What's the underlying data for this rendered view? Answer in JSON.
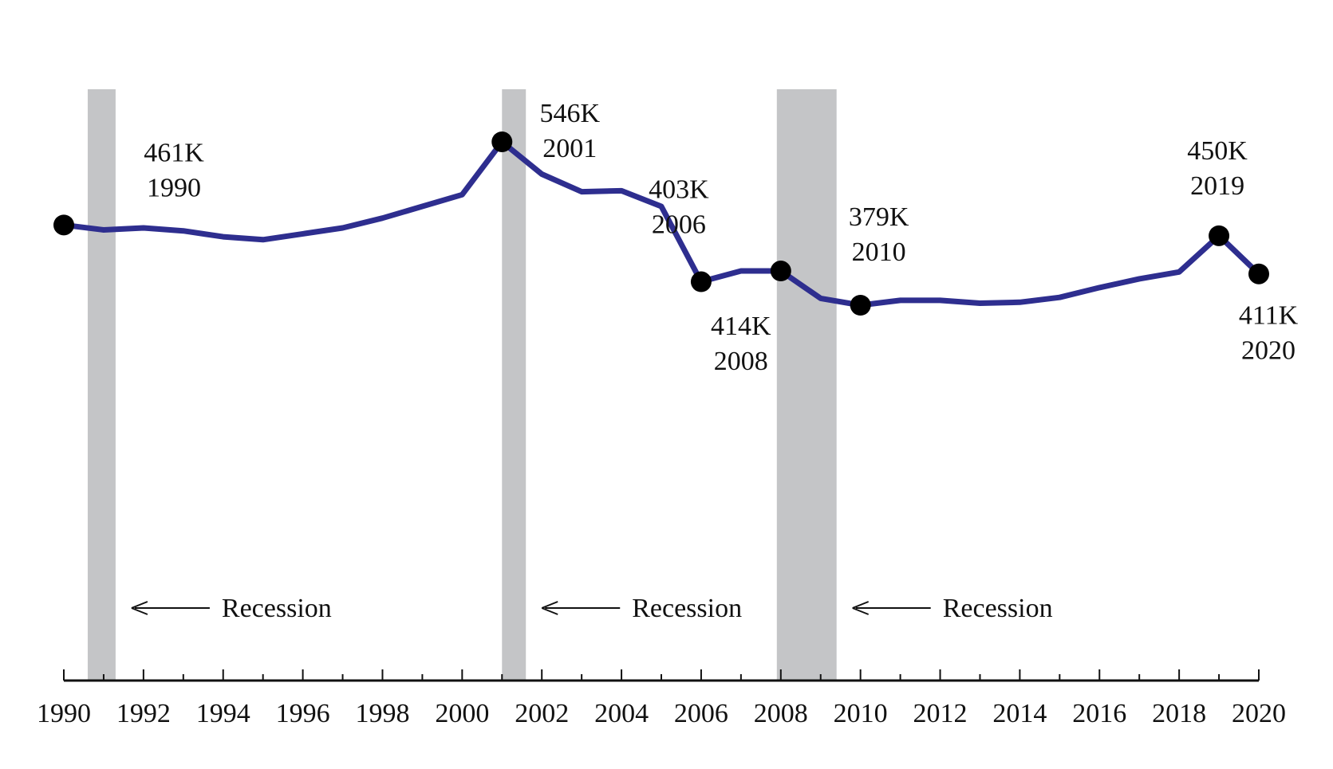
{
  "chart_data": {
    "type": "line",
    "title": "",
    "xlabel": "",
    "ylabel": "",
    "x_range": [
      1990,
      2020
    ],
    "grid": false,
    "legend": "none",
    "series": [
      {
        "color": "#2e2e8f",
        "x": [
          1990,
          1991,
          1992,
          1993,
          1994,
          1995,
          1996,
          1997,
          1998,
          1999,
          2000,
          2001,
          2002,
          2003,
          2004,
          2005,
          2006,
          2007,
          2008,
          2009,
          2010,
          2011,
          2012,
          2013,
          2014,
          2015,
          2016,
          2017,
          2018,
          2019,
          2020
        ],
        "y": [
          461,
          456,
          458,
          455,
          449,
          446,
          452,
          458,
          468,
          480,
          492,
          546,
          513,
          495,
          496,
          480,
          403,
          414,
          414,
          386,
          379,
          384,
          384,
          381,
          382,
          387,
          397,
          406,
          413,
          450,
          411
        ]
      }
    ],
    "x_ticks": [
      "1990",
      "1992",
      "1994",
      "1996",
      "1998",
      "2000",
      "2002",
      "2004",
      "2006",
      "2008",
      "2010",
      "2012",
      "2014",
      "2016",
      "2018",
      "2020"
    ],
    "recessions": [
      {
        "start": 1990.6,
        "end": 1991.3,
        "label": "Recession"
      },
      {
        "start": 2001.0,
        "end": 2001.6,
        "label": "Recession"
      },
      {
        "start": 2007.9,
        "end": 2009.4,
        "label": "Recession"
      }
    ],
    "recession_color": "#c4c5c7",
    "marker_color": "#000000",
    "annotations": [
      {
        "x": 1990,
        "value": "461K",
        "year": "1990"
      },
      {
        "x": 2001,
        "value": "546K",
        "year": "2001"
      },
      {
        "x": 2006,
        "value": "403K",
        "year": "2006"
      },
      {
        "x": 2008,
        "value": "414K",
        "year": "2008"
      },
      {
        "x": 2010,
        "value": "379K",
        "year": "2010"
      },
      {
        "x": 2019,
        "value": "450K",
        "year": "2019"
      },
      {
        "x": 2020,
        "value": "411K",
        "year": "2020"
      }
    ]
  }
}
